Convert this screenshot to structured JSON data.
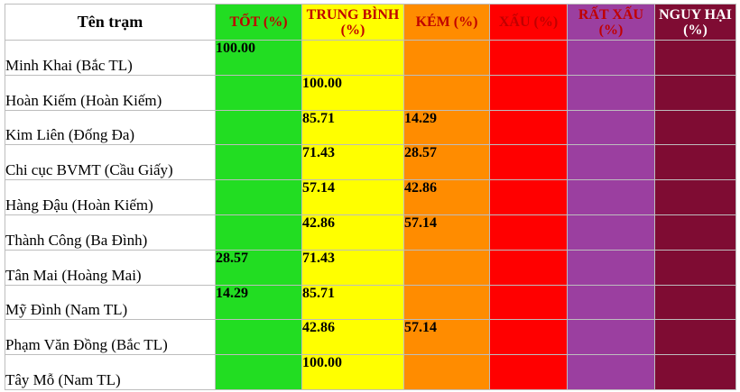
{
  "table": {
    "headers": {
      "station": "Tên trạm",
      "good": "TỐT (%)",
      "medium": "TRUNG BÌNH (%)",
      "poor": "KÉM (%)",
      "bad": "XẤU (%)",
      "very_bad": "RẤT XẤU (%)",
      "hazardous": "NGUY HẠI (%)"
    },
    "colors": {
      "good": "#22dd22",
      "medium": "#ffff00",
      "poor": "#ff8c00",
      "bad": "#ff0000",
      "very_bad": "#9b3fa0",
      "hazardous": "#7f0c33",
      "header_text": "#c00000"
    },
    "rows": [
      {
        "name": "Minh Khai (Bắc TL)",
        "good": "100.00",
        "medium": "",
        "poor": "",
        "bad": "",
        "very_bad": "",
        "hazardous": ""
      },
      {
        "name": "Hoàn Kiếm (Hoàn Kiếm)",
        "good": "",
        "medium": "100.00",
        "poor": "",
        "bad": "",
        "very_bad": "",
        "hazardous": ""
      },
      {
        "name": "Kim Liên (Đống Đa)",
        "good": "",
        "medium": "85.71",
        "poor": "14.29",
        "bad": "",
        "very_bad": "",
        "hazardous": ""
      },
      {
        "name": "Chi cục BVMT (Cầu Giấy)",
        "good": "",
        "medium": "71.43",
        "poor": "28.57",
        "bad": "",
        "very_bad": "",
        "hazardous": ""
      },
      {
        "name": "Hàng Đậu (Hoàn Kiếm)",
        "good": "",
        "medium": "57.14",
        "poor": "42.86",
        "bad": "",
        "very_bad": "",
        "hazardous": ""
      },
      {
        "name": "Thành Công (Ba Đình)",
        "good": "",
        "medium": "42.86",
        "poor": "57.14",
        "bad": "",
        "very_bad": "",
        "hazardous": ""
      },
      {
        "name": "Tân Mai (Hoàng Mai)",
        "good": "28.57",
        "medium": "71.43",
        "poor": "",
        "bad": "",
        "very_bad": "",
        "hazardous": ""
      },
      {
        "name": "Mỹ Đình (Nam TL)",
        "good": "14.29",
        "medium": "85.71",
        "poor": "",
        "bad": "",
        "very_bad": "",
        "hazardous": ""
      },
      {
        "name": "Phạm Văn Đồng (Bắc TL)",
        "good": "",
        "medium": "42.86",
        "poor": "57.14",
        "bad": "",
        "very_bad": "",
        "hazardous": ""
      },
      {
        "name": "Tây Mỗ (Nam  TL)",
        "good": "",
        "medium": "100.00",
        "poor": "",
        "bad": "",
        "very_bad": "",
        "hazardous": ""
      }
    ]
  }
}
